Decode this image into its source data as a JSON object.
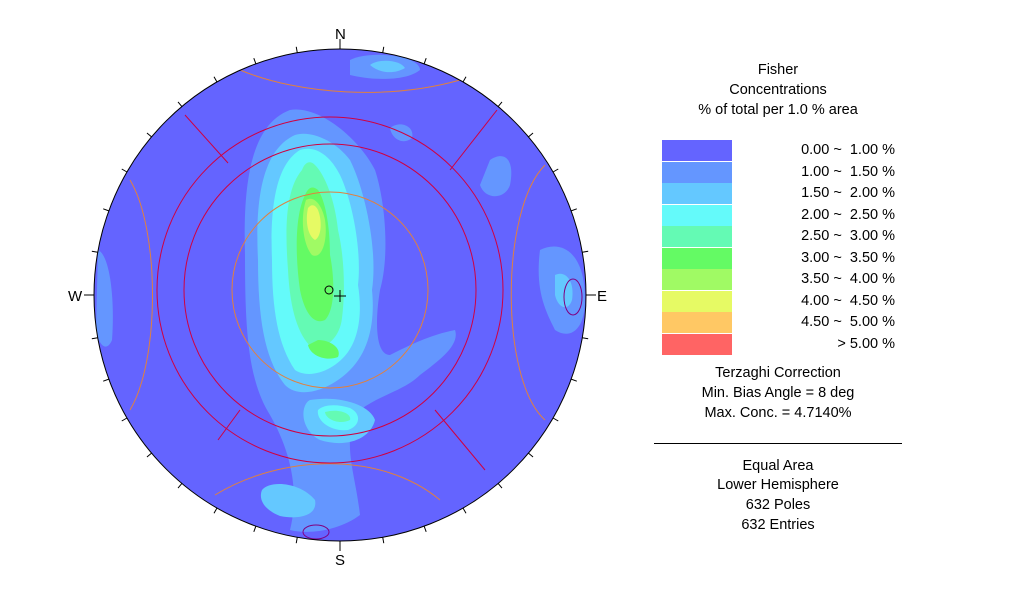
{
  "chart_data": {
    "type": "stereonet-contour",
    "projection": "Equal Area",
    "hemisphere": "Lower Hemisphere",
    "directions": {
      "north": "N",
      "south": "S",
      "east": "E",
      "west": "W"
    },
    "legend": {
      "method": "Fisher",
      "subtitle": "Concentrations",
      "unit_line": "% of total per 1.0 % area",
      "bins": [
        {
          "label": "0.00 ~  1.00 %",
          "min": 0.0,
          "max": 1.0,
          "color": "#6464ff"
        },
        {
          "label": "1.00 ~  1.50 %",
          "min": 1.0,
          "max": 1.5,
          "color": "#6496ff"
        },
        {
          "label": "1.50 ~  2.00 %",
          "min": 1.5,
          "max": 2.0,
          "color": "#64c8ff"
        },
        {
          "label": "2.00 ~  2.50 %",
          "min": 2.0,
          "max": 2.5,
          "color": "#64fafa"
        },
        {
          "label": "2.50 ~  3.00 %",
          "min": 2.5,
          "max": 3.0,
          "color": "#64fab4"
        },
        {
          "label": "3.00 ~  3.50 %",
          "min": 3.0,
          "max": 3.5,
          "color": "#64fa64"
        },
        {
          "label": "3.50 ~  4.00 %",
          "min": 3.5,
          "max": 4.0,
          "color": "#a0fa64"
        },
        {
          "label": "4.00 ~  4.50 %",
          "min": 4.0,
          "max": 4.5,
          "color": "#e6fa64"
        },
        {
          "label": "4.50 ~  5.00 %",
          "min": 4.5,
          "max": 5.0,
          "color": "#ffc864"
        },
        {
          "label": "> 5.00 %",
          "min": 5.0,
          "max": null,
          "color": "#ff6464"
        }
      ]
    },
    "correction": {
      "title": "Terzaghi Correction",
      "min_bias_angle": "Min. Bias Angle = 8 deg",
      "max_concentration": "Max. Conc. = 4.7140%"
    },
    "summary": {
      "projection": "Equal Area",
      "hemisphere": "Lower Hemisphere",
      "poles": "632 Poles",
      "entries": "632 Entries"
    },
    "max_concentration_percent": 4.714,
    "poles": 632,
    "entries": 632,
    "min_bias_angle_deg": 8
  }
}
